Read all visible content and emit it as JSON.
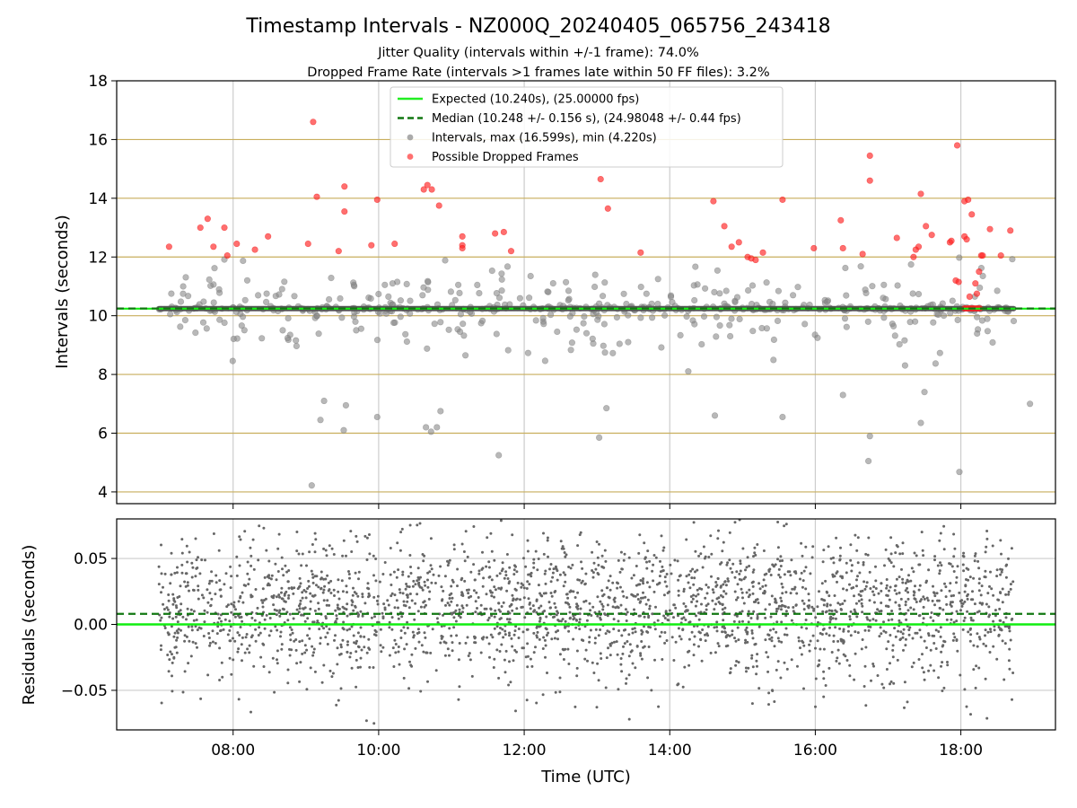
{
  "chart_data": {
    "title": "Timestamp Intervals - NZ000Q_20240405_065756_243418",
    "subtitles": [
      "Jitter Quality (intervals within +/-1 frame): 74.0%",
      "Dropped Frame Rate (intervals >1 frames late within 50 FF files): 3.2%"
    ],
    "xlabel": "Time (UTC)",
    "x_range_hours": [
      6.4,
      19.3
    ],
    "x_ticks": [
      {
        "value": 8,
        "label": "08:00"
      },
      {
        "value": 10,
        "label": "10:00"
      },
      {
        "value": 12,
        "label": "12:00"
      },
      {
        "value": 14,
        "label": "14:00"
      },
      {
        "value": 16,
        "label": "16:00"
      },
      {
        "value": 18,
        "label": "18:00"
      }
    ],
    "grid": true,
    "top_panel": {
      "type": "scatter",
      "ylabel": "Intervals (seconds)",
      "ylim": [
        3.6,
        18.0
      ],
      "y_ticks": [
        {
          "value": 4,
          "label": "4"
        },
        {
          "value": 6,
          "label": "6"
        },
        {
          "value": 8,
          "label": "8"
        },
        {
          "value": 10,
          "label": "10"
        },
        {
          "value": 12,
          "label": "12"
        },
        {
          "value": 14,
          "label": "14"
        },
        {
          "value": 16,
          "label": "16"
        },
        {
          "value": 18,
          "label": "18"
        }
      ],
      "frame_lines": [
        4,
        6,
        8,
        10,
        12,
        14,
        16
      ],
      "expected": 10.24,
      "median": 10.248,
      "x_span_hours": [
        6.98,
        18.73
      ],
      "legend_position": "upper center",
      "legend": [
        {
          "label": "Expected (10.240s), (25.00000 fps)",
          "style": "solid-line",
          "color": "#22ee22"
        },
        {
          "label": "Median (10.248 +/- 0.156 s), (24.98048 +/- 0.44 fps)",
          "style": "dashed-line",
          "color": "#117711"
        },
        {
          "label": "Intervals, max (16.599s), min (4.220s)",
          "style": "marker",
          "color": "#888888"
        },
        {
          "label": "Possible Dropped Frames",
          "style": "marker",
          "color": "#ff3333"
        }
      ],
      "dropped_frames": [
        {
          "x": 7.12,
          "y": 12.35
        },
        {
          "x": 7.55,
          "y": 13.0
        },
        {
          "x": 7.65,
          "y": 13.3
        },
        {
          "x": 7.73,
          "y": 12.35
        },
        {
          "x": 7.88,
          "y": 13.0
        },
        {
          "x": 7.92,
          "y": 12.05
        },
        {
          "x": 8.05,
          "y": 12.45
        },
        {
          "x": 8.3,
          "y": 12.25
        },
        {
          "x": 8.48,
          "y": 12.7
        },
        {
          "x": 9.03,
          "y": 12.45
        },
        {
          "x": 9.1,
          "y": 16.6
        },
        {
          "x": 9.15,
          "y": 14.05
        },
        {
          "x": 9.45,
          "y": 12.2
        },
        {
          "x": 9.53,
          "y": 14.4
        },
        {
          "x": 9.53,
          "y": 13.55
        },
        {
          "x": 9.9,
          "y": 12.4
        },
        {
          "x": 9.98,
          "y": 13.95
        },
        {
          "x": 10.22,
          "y": 12.45
        },
        {
          "x": 10.62,
          "y": 14.3
        },
        {
          "x": 10.67,
          "y": 14.45
        },
        {
          "x": 10.73,
          "y": 14.3
        },
        {
          "x": 10.83,
          "y": 13.75
        },
        {
          "x": 11.15,
          "y": 12.7
        },
        {
          "x": 11.15,
          "y": 12.4
        },
        {
          "x": 11.15,
          "y": 12.3
        },
        {
          "x": 11.6,
          "y": 12.8
        },
        {
          "x": 11.72,
          "y": 12.85
        },
        {
          "x": 11.82,
          "y": 12.2
        },
        {
          "x": 13.05,
          "y": 14.65
        },
        {
          "x": 13.15,
          "y": 13.65
        },
        {
          "x": 13.6,
          "y": 12.15
        },
        {
          "x": 14.6,
          "y": 13.9
        },
        {
          "x": 14.75,
          "y": 13.05
        },
        {
          "x": 14.85,
          "y": 12.35
        },
        {
          "x": 14.95,
          "y": 12.5
        },
        {
          "x": 15.07,
          "y": 12.0
        },
        {
          "x": 15.12,
          "y": 11.95
        },
        {
          "x": 15.18,
          "y": 11.9
        },
        {
          "x": 15.28,
          "y": 12.15
        },
        {
          "x": 15.55,
          "y": 13.95
        },
        {
          "x": 15.98,
          "y": 12.3
        },
        {
          "x": 16.35,
          "y": 13.25
        },
        {
          "x": 16.38,
          "y": 12.3
        },
        {
          "x": 16.65,
          "y": 12.1
        },
        {
          "x": 16.75,
          "y": 15.45
        },
        {
          "x": 16.75,
          "y": 14.6
        },
        {
          "x": 17.12,
          "y": 12.65
        },
        {
          "x": 17.35,
          "y": 12.0
        },
        {
          "x": 17.38,
          "y": 12.25
        },
        {
          "x": 17.42,
          "y": 12.35
        },
        {
          "x": 17.45,
          "y": 14.15
        },
        {
          "x": 17.52,
          "y": 13.05
        },
        {
          "x": 17.6,
          "y": 12.75
        },
        {
          "x": 17.85,
          "y": 12.5
        },
        {
          "x": 17.87,
          "y": 12.55
        },
        {
          "x": 17.93,
          "y": 11.2
        },
        {
          "x": 17.95,
          "y": 15.8
        },
        {
          "x": 17.97,
          "y": 11.15
        },
        {
          "x": 18.05,
          "y": 13.9
        },
        {
          "x": 18.05,
          "y": 12.7
        },
        {
          "x": 18.08,
          "y": 12.6
        },
        {
          "x": 18.1,
          "y": 13.95
        },
        {
          "x": 18.15,
          "y": 13.45
        },
        {
          "x": 18.2,
          "y": 11.1
        },
        {
          "x": 18.25,
          "y": 11.5
        },
        {
          "x": 18.28,
          "y": 12.05
        },
        {
          "x": 18.3,
          "y": 12.05
        },
        {
          "x": 18.4,
          "y": 12.95
        },
        {
          "x": 18.55,
          "y": 12.05
        },
        {
          "x": 18.68,
          "y": 12.9
        },
        {
          "x": 18.22,
          "y": 10.75
        },
        {
          "x": 18.12,
          "y": 10.65
        },
        {
          "x": 18.05,
          "y": 10.25
        },
        {
          "x": 18.08,
          "y": 10.25
        },
        {
          "x": 18.11,
          "y": 10.25
        },
        {
          "x": 18.14,
          "y": 10.25
        },
        {
          "x": 18.17,
          "y": 10.25
        },
        {
          "x": 18.2,
          "y": 10.25
        },
        {
          "x": 18.23,
          "y": 10.25
        },
        {
          "x": 18.26,
          "y": 10.25
        }
      ],
      "notable_intervals": [
        {
          "x": 9.08,
          "y": 4.22
        },
        {
          "x": 17.98,
          "y": 4.68
        },
        {
          "x": 11.65,
          "y": 5.25
        },
        {
          "x": 16.73,
          "y": 5.05
        },
        {
          "x": 16.75,
          "y": 5.9
        },
        {
          "x": 13.03,
          "y": 5.85
        },
        {
          "x": 9.2,
          "y": 6.45
        },
        {
          "x": 9.52,
          "y": 6.1
        },
        {
          "x": 9.55,
          "y": 6.95
        },
        {
          "x": 9.25,
          "y": 7.1
        },
        {
          "x": 9.98,
          "y": 6.55
        },
        {
          "x": 10.65,
          "y": 6.2
        },
        {
          "x": 10.72,
          "y": 6.05
        },
        {
          "x": 10.8,
          "y": 6.2
        },
        {
          "x": 10.85,
          "y": 6.75
        },
        {
          "x": 13.13,
          "y": 6.85
        },
        {
          "x": 14.62,
          "y": 6.6
        },
        {
          "x": 15.55,
          "y": 6.55
        },
        {
          "x": 17.45,
          "y": 6.35
        },
        {
          "x": 16.38,
          "y": 7.3
        },
        {
          "x": 17.5,
          "y": 7.4
        },
        {
          "x": 18.95,
          "y": 7.0
        }
      ],
      "interval_random_seed": 20240405,
      "interval_count": 560
    },
    "bottom_panel": {
      "type": "scatter",
      "ylabel": "Residuals (seconds)",
      "ylim": [
        -0.08,
        0.08
      ],
      "y_ticks": [
        {
          "value": -0.05,
          "label": "−0.05"
        },
        {
          "value": 0.0,
          "label": "0.00"
        },
        {
          "value": 0.05,
          "label": "0.05"
        }
      ],
      "expected": 0.0,
      "median": 0.008,
      "residual_random_seed": 65756,
      "residual_count": 2600,
      "residual_spread": 0.028
    },
    "colors": {
      "expected": "#11ee11",
      "median": "#117711",
      "intervals": "#888888",
      "intervals_edge": "#777777",
      "dropped": "#ff2222",
      "residuals": "#666666",
      "frame_lines": "#c8ae5c",
      "grid": "#cccccc"
    }
  }
}
